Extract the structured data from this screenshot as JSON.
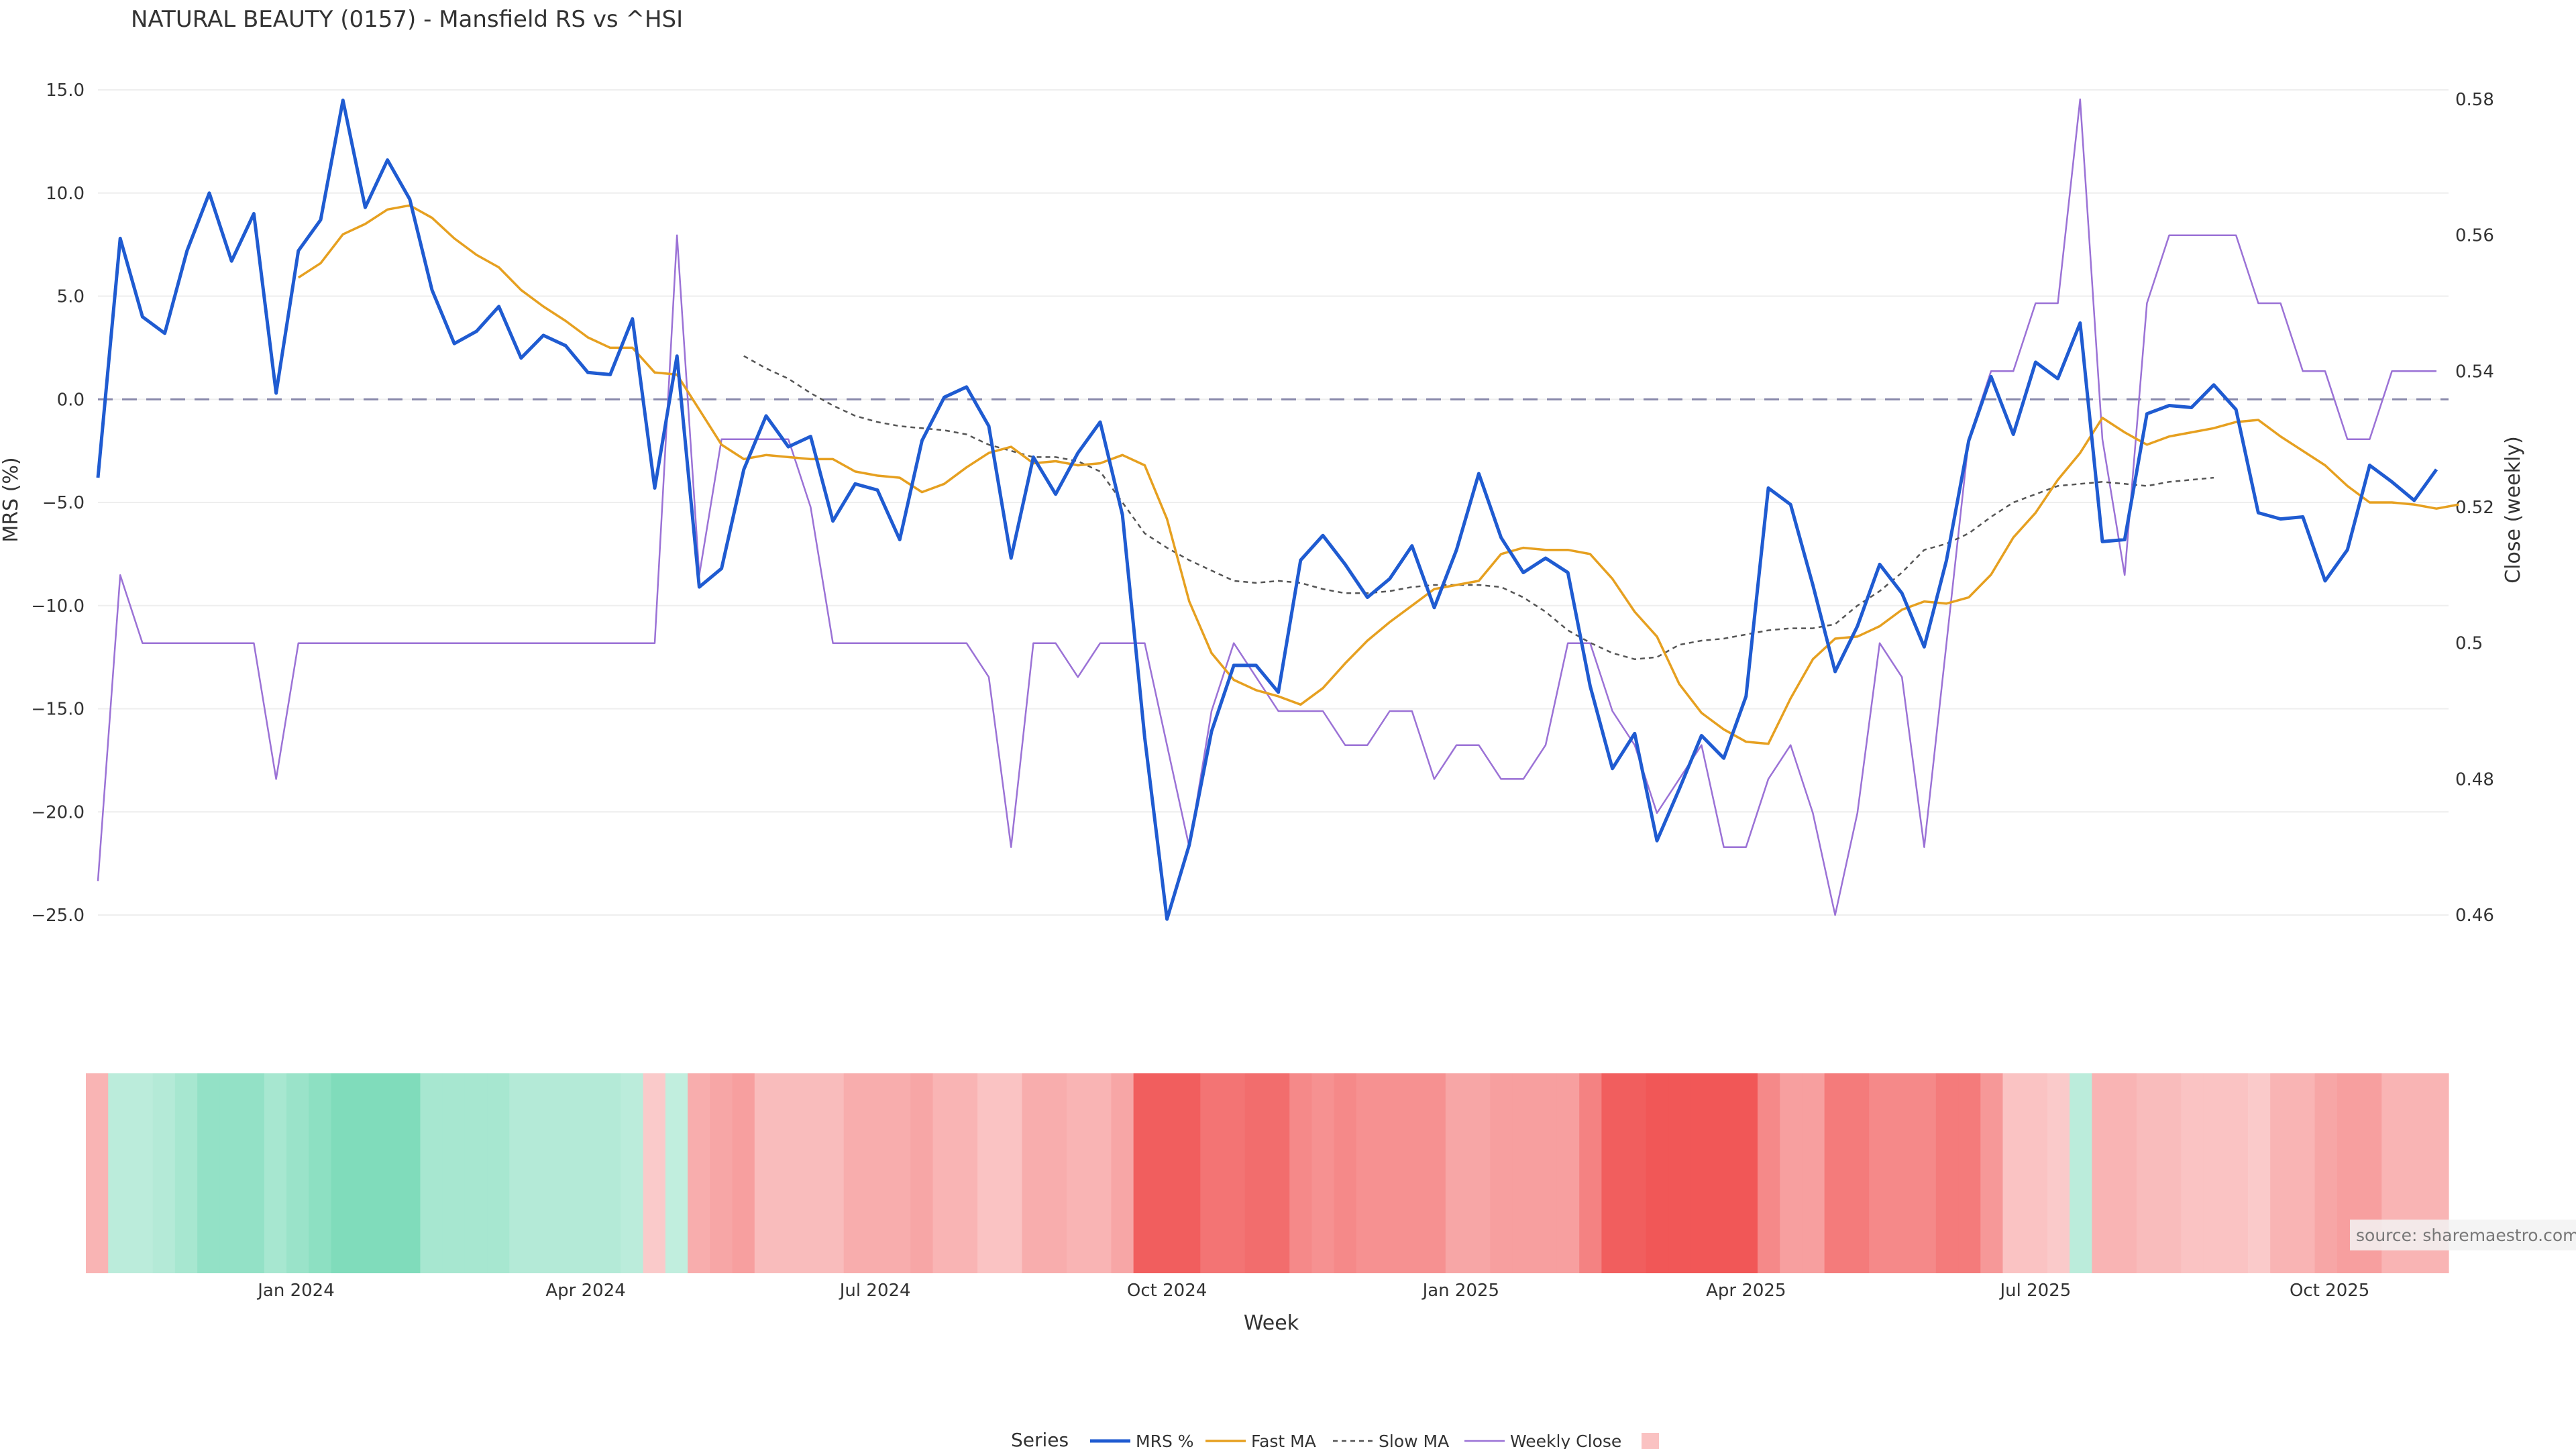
{
  "title": "NATURAL BEAUTY (0157) - Mansfield RS vs ^HSI",
  "source_note": "source: sharemaestro.com",
  "colors": {
    "mrs": "#1f5bd1",
    "fast_ma": "#e6a020",
    "slow_ma": "#555555",
    "weekly_close": "#9b72d6",
    "zero_line": "#8888aa",
    "heat_pos": "#5fd3aa",
    "heat_neg": "#f05050"
  },
  "legend": {
    "title": "Series",
    "items": [
      "MRS %",
      "Fast MA",
      "Slow MA",
      "Weekly Close"
    ]
  },
  "chart_data": {
    "type": "line",
    "xlabel": "Week",
    "ylabel": "MRS (%)",
    "y2label": "Close (weekly)",
    "ylim": [
      -25,
      15
    ],
    "y2lim": [
      0.46,
      0.58
    ],
    "yticks": [
      "15.0",
      "10.0",
      "5.0",
      "0.0",
      "−5.0",
      "−10.0",
      "−15.0",
      "−20.0",
      "−25.0"
    ],
    "y2ticks": [
      "0.58",
      "0.56",
      "0.54",
      "0.52",
      "0.5",
      "0.48",
      "0.46"
    ],
    "xticks": [
      {
        "label": "Jan 2024",
        "week": 8.9
      },
      {
        "label": "Apr 2024",
        "week": 21.9
      },
      {
        "label": "Jul 2024",
        "week": 34.9
      },
      {
        "label": "Oct 2024",
        "week": 48.0
      },
      {
        "label": "Jan 2025",
        "week": 61.2
      },
      {
        "label": "Apr 2025",
        "week": 74.0
      },
      {
        "label": "Jul 2025",
        "week": 87.0
      },
      {
        "label": "Oct 2025",
        "week": 100.2
      }
    ],
    "grid": true,
    "zero_line": 0,
    "series": [
      {
        "name": "MRS %",
        "axis": "y",
        "start": 0,
        "values": [
          -3.8,
          7.8,
          4.0,
          3.2,
          7.2,
          10.0,
          6.7,
          9.0,
          0.3,
          7.2,
          8.7,
          14.5,
          9.3,
          11.6,
          9.7,
          5.3,
          2.7,
          3.3,
          4.5,
          2.0,
          3.1,
          2.6,
          1.3,
          1.2,
          3.9,
          -4.3,
          2.1,
          -9.1,
          -8.2,
          -3.4,
          -0.8,
          -2.3,
          -1.8,
          -5.9,
          -4.1,
          -4.4,
          -6.8,
          -2.0,
          0.1,
          0.6,
          -1.3,
          -7.7,
          -2.8,
          -4.6,
          -2.6,
          -1.1,
          -5.6,
          -16.4,
          -25.2,
          -21.6,
          -16.1,
          -12.9,
          -12.9,
          -14.2,
          -7.8,
          -6.6,
          -8.0,
          -9.6,
          -8.7,
          -7.1,
          -10.1,
          -7.3,
          -3.6,
          -6.7,
          -8.4,
          -7.7,
          -8.4,
          -13.9,
          -17.9,
          -16.2,
          -21.4,
          -18.9,
          -16.3,
          -17.4,
          -14.4,
          -4.3,
          -5.1,
          -9.0,
          -13.2,
          -11.0,
          -8.0,
          -9.4,
          -12.0,
          -7.8,
          -2.0,
          1.1,
          -1.7,
          1.8,
          1.0,
          3.7,
          -6.9,
          -6.8,
          -0.7,
          -0.3,
          -0.4,
          0.7,
          -0.5,
          -5.5,
          -5.8,
          -5.7,
          -8.8,
          -7.3,
          -3.2,
          -4.0,
          -4.9,
          -3.4
        ]
      },
      {
        "name": "Fast MA",
        "axis": "y",
        "start": 9,
        "values": [
          5.9,
          6.6,
          8.0,
          8.5,
          9.2,
          9.4,
          8.8,
          7.8,
          7.0,
          6.4,
          5.3,
          4.5,
          3.8,
          3.0,
          2.5,
          2.5,
          1.3,
          1.2,
          -0.5,
          -2.2,
          -2.9,
          -2.7,
          -2.8,
          -2.9,
          -2.9,
          -3.5,
          -3.7,
          -3.8,
          -4.5,
          -4.1,
          -3.3,
          -2.6,
          -2.3,
          -3.1,
          -3.0,
          -3.2,
          -3.1,
          -2.7,
          -3.2,
          -5.8,
          -9.8,
          -12.3,
          -13.6,
          -14.1,
          -14.4,
          -14.8,
          -14.0,
          -12.8,
          -11.7,
          -10.8,
          -10.0,
          -9.2,
          -9.0,
          -8.8,
          -7.5,
          -7.2,
          -7.3,
          -7.3,
          -7.5,
          -8.7,
          -10.3,
          -11.5,
          -13.8,
          -15.2,
          -16.0,
          -16.6,
          -16.7,
          -14.5,
          -12.6,
          -11.6,
          -11.5,
          -11.0,
          -10.2,
          -9.8,
          -9.9,
          -9.6,
          -8.5,
          -6.7,
          -5.5,
          -3.9,
          -2.6,
          -0.9,
          -1.6,
          -2.2,
          -1.8,
          -1.6,
          -1.4,
          -1.1,
          -1.0,
          -1.8,
          -2.5,
          -3.2,
          -4.2,
          -5.0,
          -5.0,
          -5.1,
          -5.3,
          -5.1
        ]
      },
      {
        "name": "Slow MA",
        "axis": "y",
        "start": 29,
        "values": [
          2.1,
          1.5,
          1.0,
          0.3,
          -0.3,
          -0.8,
          -1.1,
          -1.3,
          -1.4,
          -1.5,
          -1.7,
          -2.2,
          -2.5,
          -2.8,
          -2.8,
          -3.0,
          -3.5,
          -5.0,
          -6.5,
          -7.2,
          -7.8,
          -8.3,
          -8.8,
          -8.9,
          -8.8,
          -8.9,
          -9.2,
          -9.4,
          -9.4,
          -9.3,
          -9.1,
          -9.0,
          -9.0,
          -9.0,
          -9.1,
          -9.6,
          -10.3,
          -11.2,
          -11.8,
          -12.3,
          -12.6,
          -12.5,
          -11.9,
          -11.7,
          -11.6,
          -11.4,
          -11.2,
          -11.1,
          -11.1,
          -10.9,
          -10.0,
          -9.3,
          -8.4,
          -7.3,
          -7.0,
          -6.5,
          -5.7,
          -5.0,
          -4.6,
          -4.2,
          -4.1,
          -4.0,
          -4.1,
          -4.2,
          -4.0,
          -3.9,
          -3.8
        ]
      },
      {
        "name": "Weekly Close",
        "axis": "y2",
        "start": 0,
        "values": [
          0.465,
          0.51,
          0.5,
          0.5,
          0.5,
          0.5,
          0.5,
          0.5,
          0.48,
          0.5,
          0.5,
          0.5,
          0.5,
          0.5,
          0.5,
          0.5,
          0.5,
          0.5,
          0.5,
          0.5,
          0.5,
          0.5,
          0.5,
          0.5,
          0.5,
          0.5,
          0.56,
          0.51,
          0.53,
          0.53,
          0.53,
          0.53,
          0.52,
          0.5,
          0.5,
          0.5,
          0.5,
          0.5,
          0.5,
          0.5,
          0.495,
          0.47,
          0.5,
          0.5,
          0.495,
          0.5,
          0.5,
          0.5,
          0.485,
          0.47,
          0.49,
          0.5,
          0.495,
          0.49,
          0.49,
          0.49,
          0.485,
          0.485,
          0.49,
          0.49,
          0.48,
          0.485,
          0.485,
          0.48,
          0.48,
          0.485,
          0.5,
          0.5,
          0.49,
          0.485,
          0.475,
          0.48,
          0.485,
          0.47,
          0.47,
          0.48,
          0.485,
          0.475,
          0.46,
          0.475,
          0.5,
          0.495,
          0.47,
          0.5,
          0.53,
          0.54,
          0.54,
          0.55,
          0.55,
          0.58,
          0.53,
          0.51,
          0.55,
          0.56,
          0.56,
          0.56,
          0.56,
          0.55,
          0.55,
          0.54,
          0.54,
          0.53,
          0.53,
          0.54,
          0.54,
          0.54
        ]
      }
    ],
    "heatmap": {
      "weeks": 106,
      "values": [
        -0.3,
        0.3,
        0.3,
        0.35,
        0.45,
        0.6,
        0.6,
        0.6,
        0.45,
        0.55,
        0.65,
        0.75,
        0.75,
        0.75,
        0.75,
        0.45,
        0.45,
        0.45,
        0.45,
        0.35,
        0.35,
        0.35,
        0.35,
        0.35,
        0.3,
        -0.15,
        0.25,
        -0.35,
        -0.4,
        -0.45,
        -0.25,
        -0.25,
        -0.25,
        -0.25,
        -0.35,
        -0.35,
        -0.35,
        -0.4,
        -0.3,
        -0.3,
        -0.2,
        -0.2,
        -0.35,
        -0.35,
        -0.3,
        -0.3,
        -0.4,
        -0.9,
        -0.9,
        -0.9,
        -0.75,
        -0.75,
        -0.8,
        -0.8,
        -0.6,
        -0.55,
        -0.6,
        -0.55,
        -0.55,
        -0.55,
        -0.55,
        -0.4,
        -0.4,
        -0.45,
        -0.45,
        -0.45,
        -0.45,
        -0.65,
        -0.9,
        -0.9,
        -0.95,
        -0.95,
        -0.95,
        -0.95,
        -0.95,
        -0.6,
        -0.45,
        -0.45,
        -0.7,
        -0.7,
        -0.6,
        -0.6,
        -0.6,
        -0.7,
        -0.7,
        -0.5,
        -0.2,
        -0.2,
        -0.15,
        0.3,
        -0.3,
        -0.3,
        -0.25,
        -0.25,
        -0.2,
        -0.2,
        -0.2,
        -0.15,
        -0.3,
        -0.3,
        -0.4,
        -0.45,
        -0.45,
        -0.3,
        -0.3,
        -0.3
      ]
    }
  }
}
